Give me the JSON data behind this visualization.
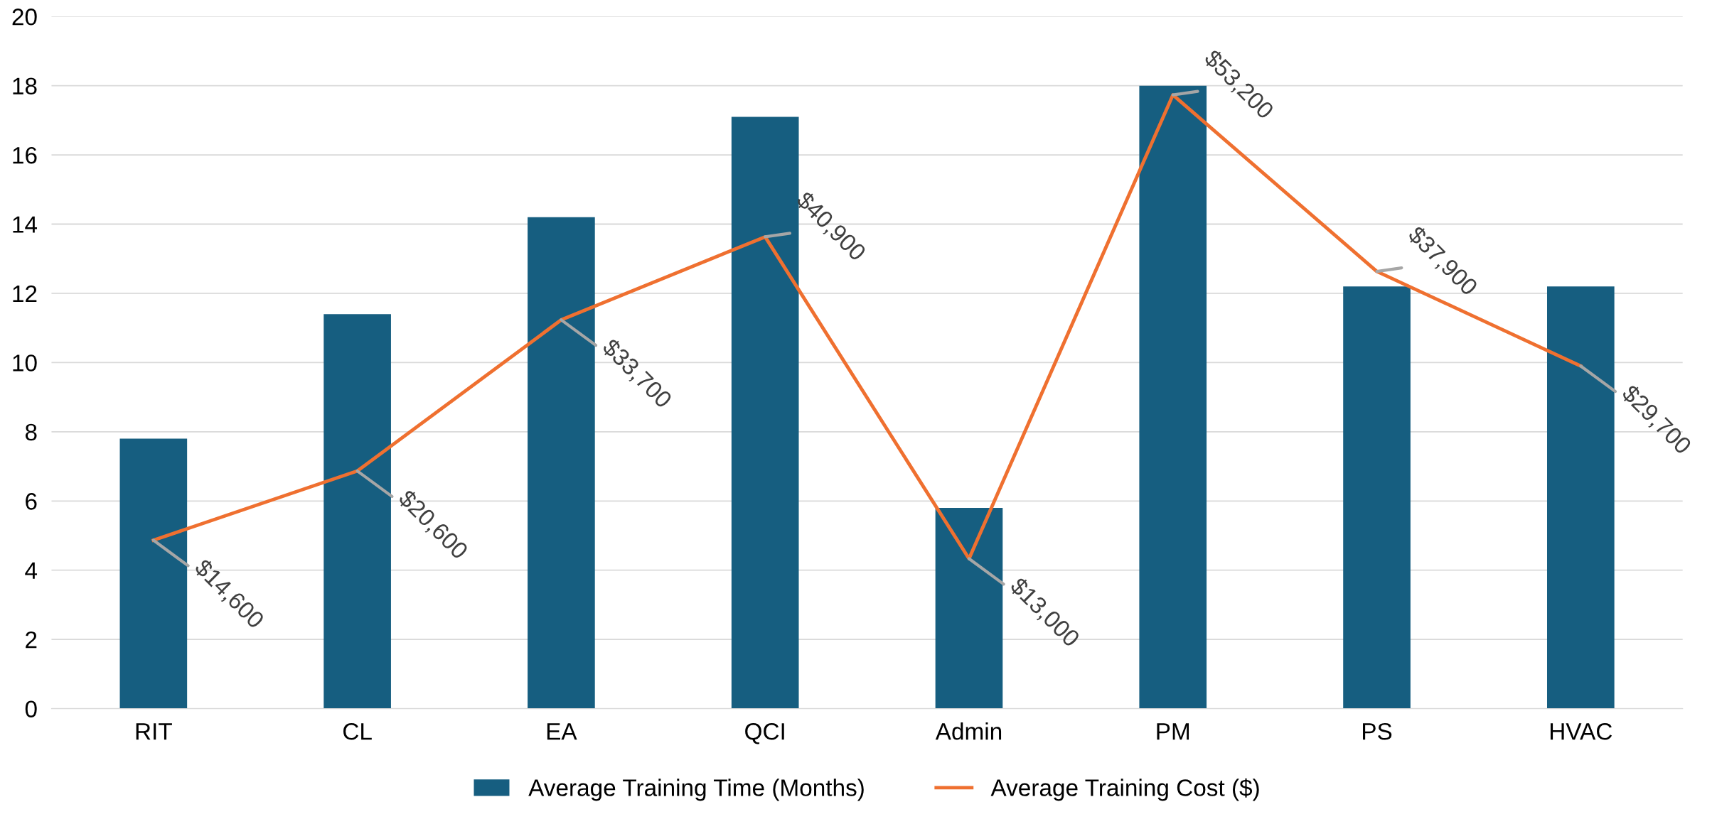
{
  "chart_data": {
    "type": "bar",
    "categories": [
      "RIT",
      "CL",
      "EA",
      "QCI",
      "Admin",
      "PM",
      "PS",
      "HVAC"
    ],
    "series": [
      {
        "name": "Average Training Time (Months)",
        "color": "#165e80",
        "values": [
          7.8,
          11.4,
          14.2,
          17.1,
          5.8,
          18.0,
          12.2,
          12.2
        ]
      },
      {
        "name": "Average Training Cost ($)",
        "type": "line",
        "axis": "y2",
        "color": "#ef7030",
        "values": [
          14600,
          20600,
          33700,
          40900,
          13000,
          53200,
          37900,
          29700
        ],
        "value_labels": [
          "$14,600",
          "$20,600",
          "$33,700",
          "$40,900",
          "$13,000",
          "$53,200",
          "$37,900",
          "$29,700"
        ]
      }
    ],
    "ylim": [
      0,
      20
    ],
    "yticks": [
      0,
      2,
      4,
      6,
      8,
      10,
      12,
      14,
      16,
      18,
      20
    ],
    "y2lim": [
      0,
      60000
    ],
    "grid": "y",
    "legend": "bottom",
    "marker": "none",
    "line_style": "solid"
  }
}
